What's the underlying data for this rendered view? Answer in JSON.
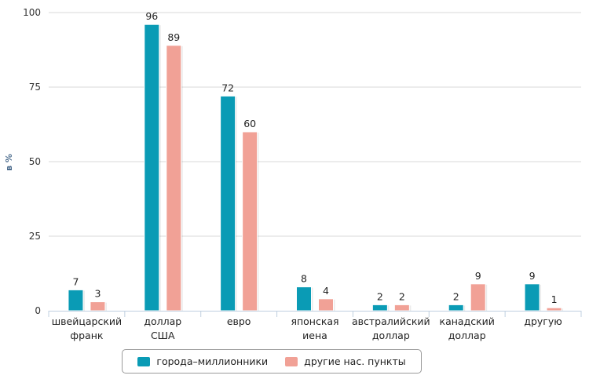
{
  "chart_data": {
    "type": "bar",
    "ylabel": "в %",
    "ylim": [
      0,
      100
    ],
    "yticks": [
      0,
      25,
      50,
      75,
      100
    ],
    "categories": [
      [
        "швейцарский",
        "франк"
      ],
      [
        "доллар",
        "США"
      ],
      [
        "евро"
      ],
      [
        "японская",
        "иена"
      ],
      [
        "австралийский",
        "доллар"
      ],
      [
        "канадский",
        "доллар"
      ],
      [
        "другую"
      ]
    ],
    "series": [
      {
        "name": "города–миллионники",
        "color": "#0a9bb5",
        "values": [
          7,
          96,
          72,
          8,
          2,
          2,
          9
        ]
      },
      {
        "name": "другие нас. пункты",
        "color": "#f1a196",
        "values": [
          3,
          89,
          60,
          4,
          2,
          9,
          1
        ]
      }
    ],
    "legend_position": "bottom-center",
    "grid": true
  }
}
